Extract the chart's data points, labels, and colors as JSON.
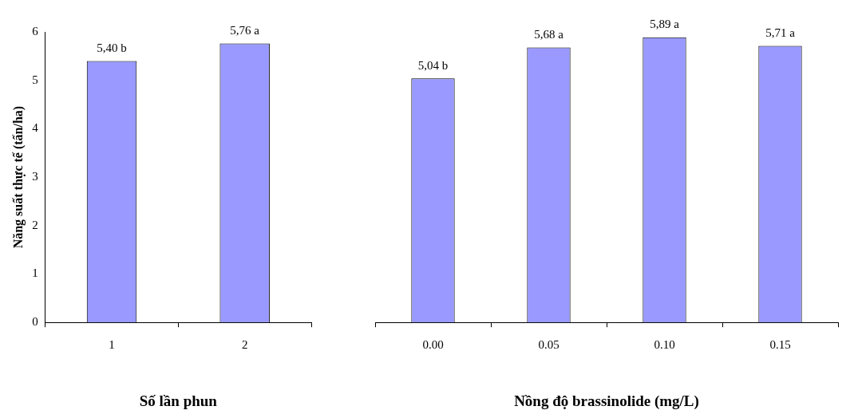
{
  "chart_data": [
    {
      "type": "bar",
      "categories": [
        "1",
        "2"
      ],
      "values": [
        5.4,
        5.76
      ],
      "value_labels": [
        "5,40 b",
        "5,76 a"
      ],
      "color": "#9999ff",
      "ylim": [
        0,
        6
      ],
      "yticks": [
        0,
        1,
        2,
        3,
        4,
        5,
        6
      ],
      "ylabel": "Năng suất thực tế (tấn/ha)",
      "xlabel": "Số lần phun",
      "grid": false,
      "legend": false
    },
    {
      "type": "bar",
      "categories": [
        "0.00",
        "0.05",
        "0.10",
        "0.15"
      ],
      "values": [
        5.04,
        5.68,
        5.89,
        5.71
      ],
      "value_labels": [
        "5,04 b",
        "5,68 a",
        "5,89 a",
        "5,71 a"
      ],
      "color": "#9999ff",
      "ylim": [
        0,
        6
      ],
      "xlabel": "Nồng độ brassinolide (mg/L)",
      "tick_labels": "x",
      "grid": false,
      "legend": false
    }
  ]
}
